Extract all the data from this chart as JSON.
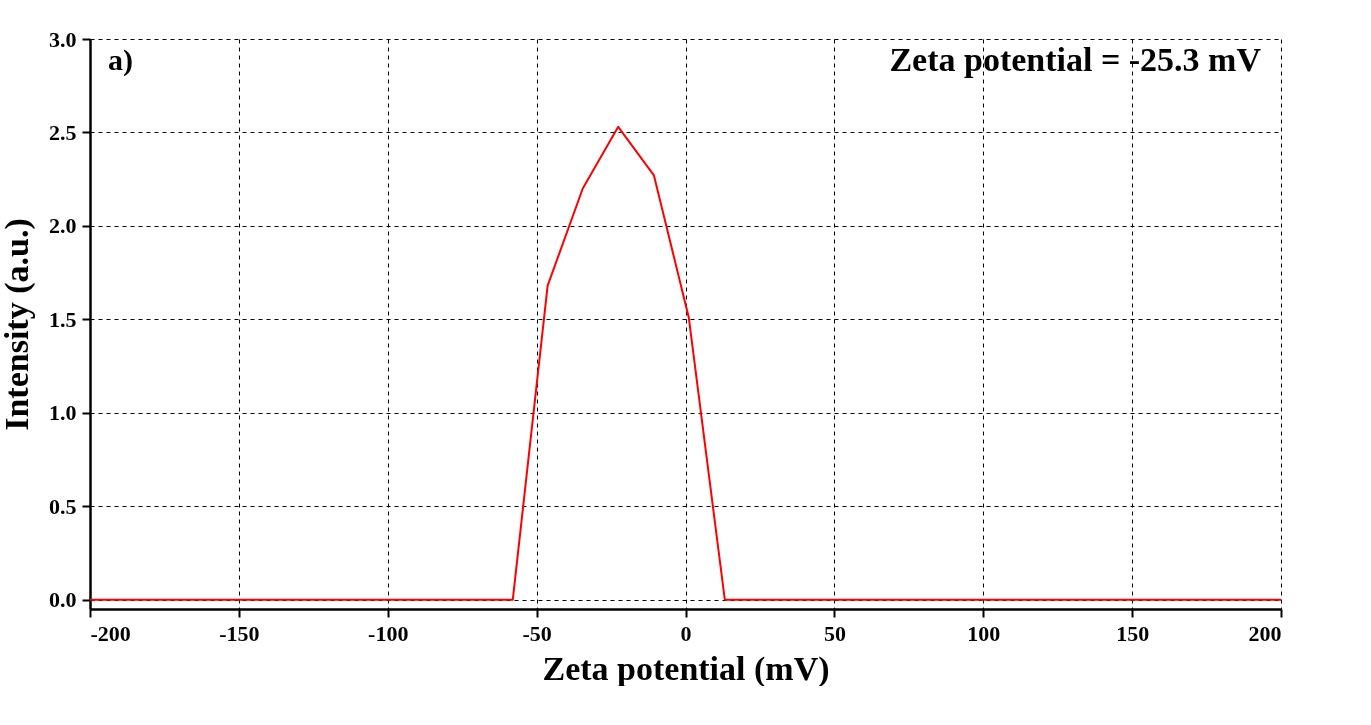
{
  "chart_data": {
    "type": "line",
    "xlabel": "Zeta potential (mV)",
    "ylabel": "Intensity (a.u.)",
    "annotations": [
      "a)",
      "Zeta potential = -25.3 mV"
    ],
    "x": [
      -200,
      -58.0,
      -46.3,
      -34.5,
      -22.6,
      -10.6,
      1.1,
      13.2,
      200
    ],
    "series": [
      {
        "color": "#ff0000",
        "values": [
          0,
          0,
          1.68,
          2.2,
          2.53,
          2.27,
          1.51,
          0,
          0
        ]
      }
    ],
    "xlim": [
      -200,
      200
    ],
    "xticks": [
      -200,
      -150,
      -100,
      -50,
      0,
      50,
      100,
      150,
      200
    ],
    "ylim": [
      -0.05,
      3
    ],
    "yticks": [
      {
        "value": 0,
        "label": "0.0"
      },
      0.5,
      {
        "value": 1,
        "label": "1.0"
      },
      1.5,
      {
        "value": 2,
        "label": "2.0"
      },
      2.5,
      {
        "value": 3,
        "label": "3.0"
      }
    ],
    "grid": true,
    "line_style": "solid",
    "marker": "none"
  }
}
